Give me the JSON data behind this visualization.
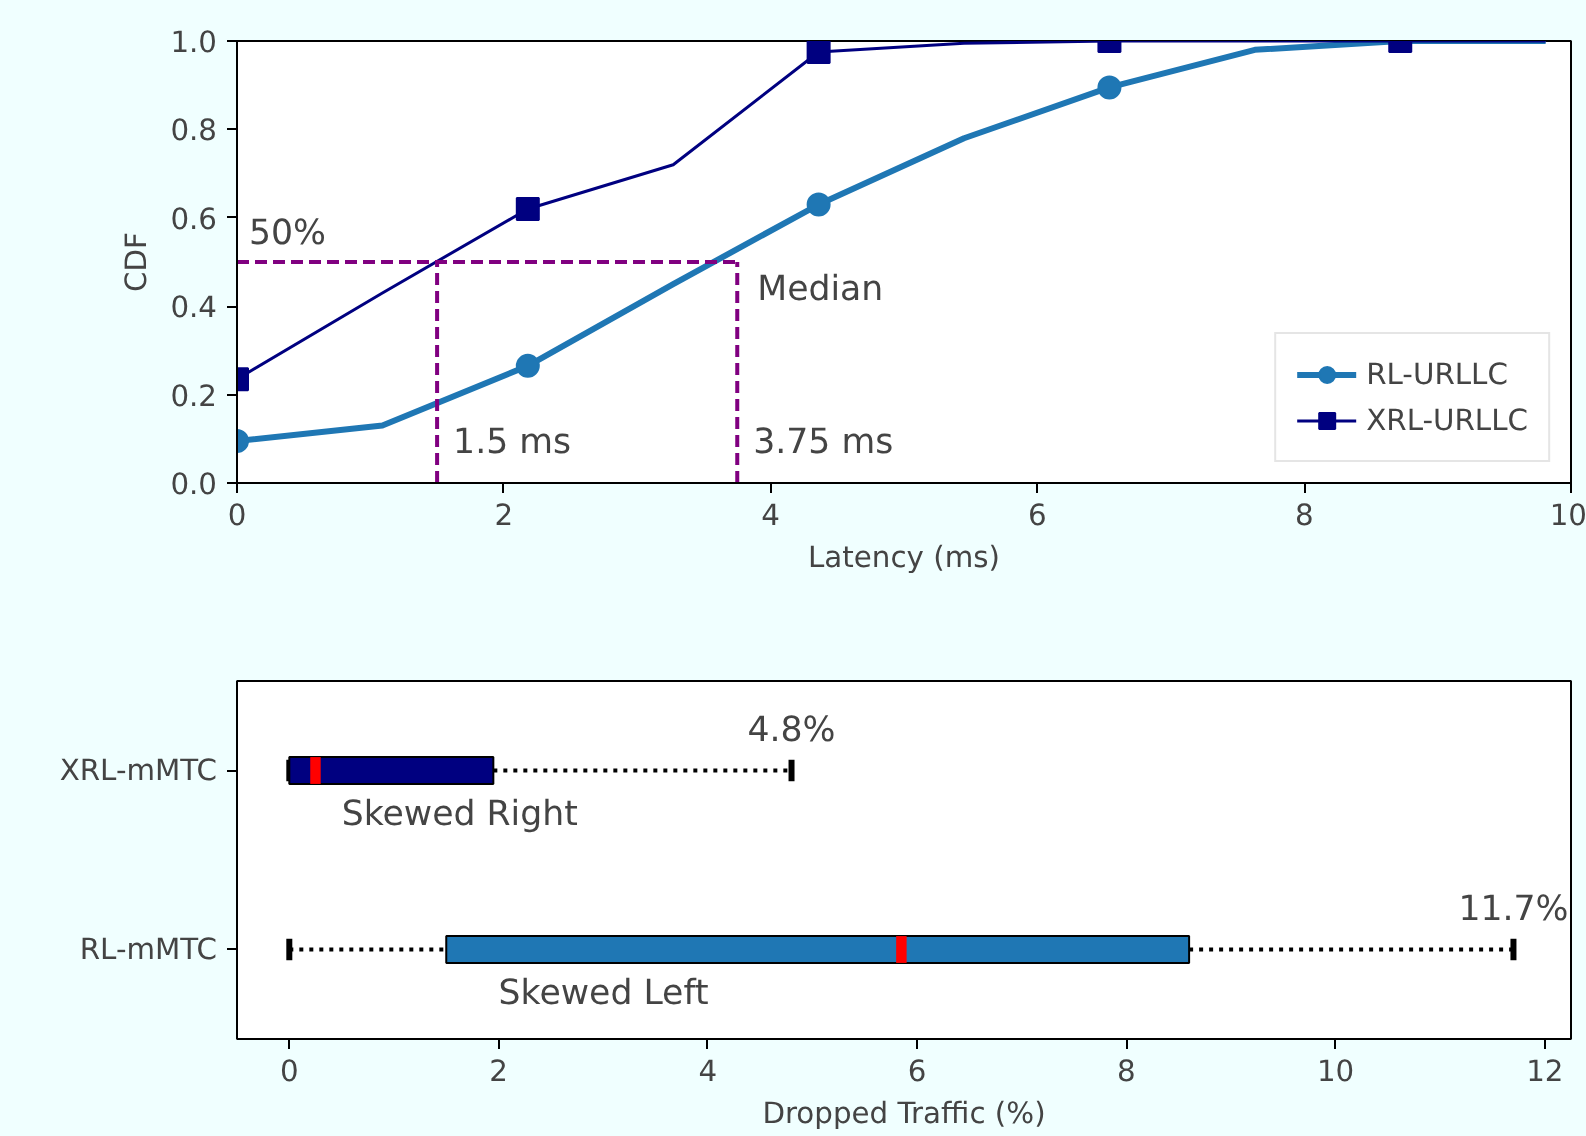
{
  "chart_data": [
    {
      "type": "line",
      "xlabel": "Latency (ms)",
      "ylabel": "CDF",
      "xlim": [
        0,
        10
      ],
      "ylim": [
        0,
        1
      ],
      "xticks": [
        0,
        2,
        4,
        6,
        8,
        10
      ],
      "yticks": [
        {
          "value": 0,
          "label": "0.0"
        },
        {
          "value": 0.2,
          "label": "0.2"
        },
        {
          "value": 0.4,
          "label": "0.4"
        },
        {
          "value": 0.6,
          "label": "0.6"
        },
        {
          "value": 0.8,
          "label": "0.8"
        },
        {
          "value": 1,
          "label": "1.0"
        }
      ],
      "grid": false,
      "legend": "bottom right",
      "series": [
        {
          "type": "line",
          "color": "#1f77b4",
          "x": [
            0,
            1.09,
            2.18,
            3.27,
            4.36,
            5.45,
            6.54,
            7.63,
            8.72,
            9.81
          ],
          "values": [
            0.095,
            0.13,
            0.265,
            0.45,
            0.63,
            0.78,
            0.895,
            0.98,
            1.0,
            1.0
          ]
        },
        {
          "type": "scatter",
          "name": "RL-URLLC",
          "color": "#1f77b4",
          "marker": "circle",
          "x": [
            0,
            2.18,
            4.36,
            6.54
          ],
          "values": [
            0.095,
            0.265,
            0.63,
            0.895
          ]
        },
        {
          "type": "line",
          "color": "#000080",
          "x": [
            0,
            1.09,
            2.18,
            3.27,
            4.36,
            5.45,
            6.54,
            7.63,
            8.72,
            9.81
          ],
          "values": [
            0.235,
            0.43,
            0.62,
            0.72,
            0.975,
            0.995,
            1.0,
            1.0,
            1.0,
            1.0
          ]
        },
        {
          "type": "scatter",
          "name": "XRL-URLLC",
          "color": "#000080",
          "marker": "square",
          "x": [
            0,
            2.18,
            4.36,
            6.54,
            8.72
          ],
          "values": [
            0.235,
            0.62,
            0.975,
            1.0,
            1.0
          ]
        },
        {
          "type": "line",
          "color": "#800080",
          "line_style": "dashed",
          "x": [
            0,
            3.75
          ],
          "values": [
            0.5,
            0.5
          ]
        },
        {
          "type": "line",
          "color": "#800080",
          "line_style": "dashed",
          "x": [
            1.5,
            1.5
          ],
          "values": [
            0,
            0.5
          ]
        },
        {
          "type": "line",
          "color": "#800080",
          "line_style": "dashed",
          "x": [
            3.75,
            3.75
          ],
          "values": [
            0,
            0.5
          ]
        }
      ],
      "annotations": [
        "50%",
        "Median",
        "1.5 ms",
        "3.75 ms"
      ]
    },
    {
      "type": "box",
      "orientation": "horizontal",
      "xlabel": "Dropped Traffic (%)",
      "xlim": [
        -0.5,
        12.25
      ],
      "xticks": [
        0,
        2,
        4,
        6,
        8,
        10,
        12
      ],
      "grid": false,
      "categories": [
        "XRL-mMTC",
        "RL-mMTC"
      ],
      "colors": [
        "#000080",
        "#1f77b4"
      ],
      "boxes": [
        {
          "low": 0,
          "q1": 0,
          "median": 0.25,
          "q3": 1.95,
          "high": 4.8
        },
        {
          "low": 0,
          "q1": 1.5,
          "median": 5.85,
          "q3": 8.6,
          "high": 11.7
        }
      ],
      "annotations": [
        "Skewed Right",
        "Skewed Left",
        {
          "text": "4.8%",
          "x": 4.8,
          "y": "XRL-mMTC"
        },
        {
          "text": "11.7%",
          "x": 11.7,
          "y": "RL-mMTC"
        }
      ]
    }
  ]
}
